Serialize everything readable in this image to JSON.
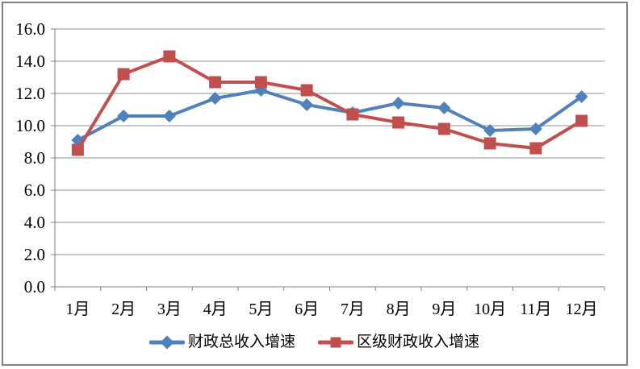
{
  "window": {
    "background_color": "#ffffff",
    "frame_border_color": "#808080"
  },
  "chart_data": {
    "type": "line",
    "title": "",
    "categories": [
      "1月",
      "2月",
      "3月",
      "4月",
      "5月",
      "6月",
      "7月",
      "8月",
      "9月",
      "10月",
      "11月",
      "12月"
    ],
    "series": [
      {
        "name": "财政总收入增速",
        "color": "#4F81BD",
        "marker": "diamond",
        "values": [
          9.1,
          10.6,
          10.6,
          11.7,
          12.2,
          11.3,
          10.8,
          11.4,
          11.1,
          9.7,
          9.8,
          11.8
        ]
      },
      {
        "name": "区级财政收入增速",
        "color": "#C0504D",
        "marker": "square",
        "values": [
          8.5,
          13.2,
          14.3,
          12.7,
          12.7,
          12.2,
          10.7,
          10.2,
          9.8,
          8.9,
          8.6,
          10.3
        ]
      }
    ],
    "xlabel": "",
    "ylabel": "",
    "ylim": [
      0,
      16
    ],
    "ytick_step": 2,
    "ytick_labels": [
      "0.0",
      "2.0",
      "4.0",
      "6.0",
      "8.0",
      "10.0",
      "12.0",
      "14.0",
      "16.0"
    ],
    "grid": true,
    "legend_position": "bottom",
    "axis_color": "#808080",
    "grid_color": "#8C8C8C",
    "text_color": "#000000",
    "line_width": 4
  }
}
